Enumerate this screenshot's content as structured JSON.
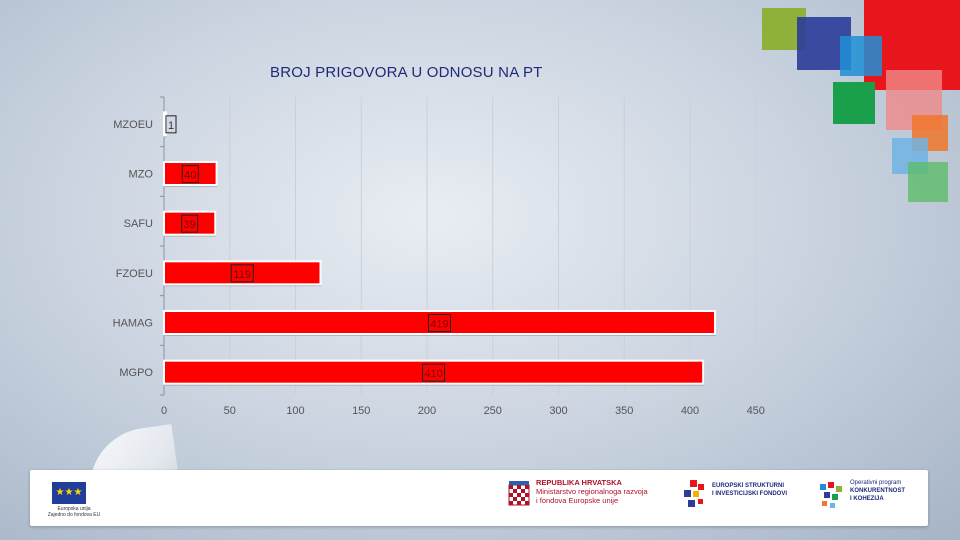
{
  "chart_data": {
    "type": "bar",
    "orientation": "horizontal",
    "title": "BROJ PRIGOVORA U ODNOSU NA PT",
    "categories": [
      "MZOEU",
      "MZO",
      "SAFU",
      "FZOEU",
      "HAMAG",
      "MGPO"
    ],
    "values": [
      1,
      40,
      39,
      119,
      419,
      410
    ],
    "data_labels": [
      "1",
      "40",
      "39",
      "119",
      "419",
      "410"
    ],
    "x_ticks": [
      "0",
      "50",
      "100",
      "150",
      "200",
      "250",
      "300",
      "350",
      "400",
      "450"
    ],
    "xlim": [
      0,
      450
    ],
    "grid": true,
    "bar_color": "#ff0000"
  },
  "footer": {
    "eu_caption_line1": "Europska unija",
    "eu_caption_line2": "Zajedno do fondova EU",
    "hr_line1": "REPUBLIKA HRVATSKA",
    "hr_line2": "Ministarstvo regionalnoga razvoja",
    "hr_line3": "i fondova Europske unije",
    "esif_line1": "EUROPSKI STRUKTURNI",
    "esif_line2": "I INVESTICIJSKI FONDOVI",
    "op_line1": "Operativni program",
    "op_line2": "KONKURENTNOST",
    "op_line3": "I KOHEZIJA"
  },
  "colors": {
    "title": "#1f2a78",
    "bar": "#ff0000",
    "deco": [
      "#8fb03b",
      "#2b3c9a",
      "#e8161c",
      "#1e8fd5",
      "#1aa04a",
      "#f0772b",
      "#6fb4e2",
      "#5cbb6a"
    ]
  }
}
